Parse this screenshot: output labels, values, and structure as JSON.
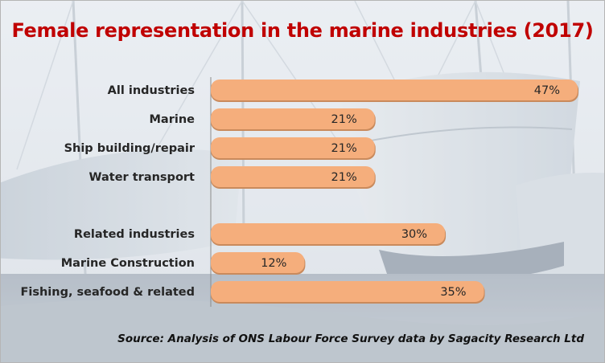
{
  "chart_data": {
    "type": "bar",
    "orientation": "horizontal",
    "title": "Female representation in the marine industries (2017)",
    "categories": [
      "All industries",
      "Marine",
      "Ship building/repair",
      "Water transport",
      "Related industries",
      "Marine Construction",
      "Fishing, seafood & related"
    ],
    "values": [
      47,
      21,
      21,
      21,
      30,
      12,
      35
    ],
    "value_labels": [
      "47%",
      "21%",
      "21%",
      "21%",
      "30%",
      "12%",
      "35%"
    ],
    "groups": [
      [
        0,
        1,
        2,
        3
      ],
      [
        4,
        5,
        6
      ]
    ],
    "xlim": [
      0,
      50
    ],
    "grid": false,
    "legend": "none",
    "bar_color": "#f5ae7c",
    "bar_shadow_color": "#c98a5c",
    "title_color": "#c00000",
    "source": "Source: Analysis of ONS Labour Force Survey data by Sagacity Research Ltd"
  }
}
